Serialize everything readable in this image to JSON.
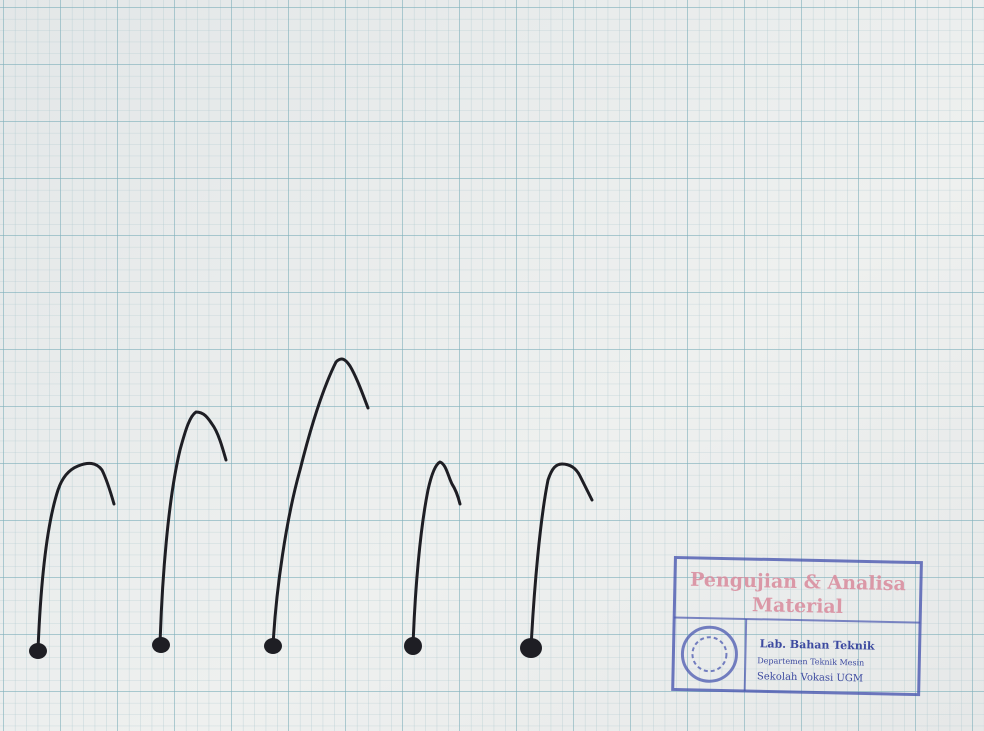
{
  "stamp": {
    "title": [
      "Pengujian & Analisa",
      "Material"
    ],
    "lines": [
      "Lab. Bahan Teknik",
      "Departemen Teknik Mesin",
      "Sekolah Vokasi UGM"
    ]
  }
}
